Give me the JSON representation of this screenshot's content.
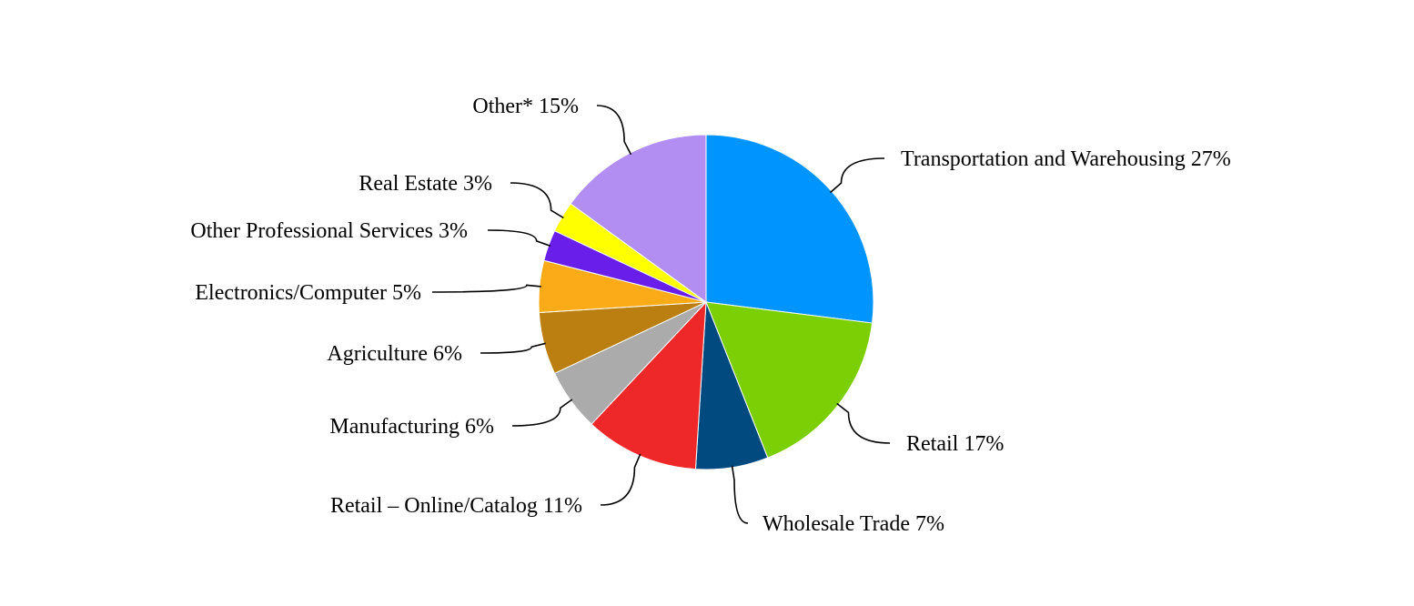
{
  "chart_data": {
    "type": "pie",
    "title": "",
    "start_angle_deg": 0,
    "direction": "clockwise",
    "slices": [
      {
        "label": "Transportation and Warehousing",
        "value": 27,
        "display": "Transportation and Warehousing 27%",
        "color": "#0094FF"
      },
      {
        "label": "Retail",
        "value": 17,
        "display": "Retail 17%",
        "color": "#7DCF05"
      },
      {
        "label": "Wholesale Trade",
        "value": 7,
        "display": "Wholesale Trade 7%",
        "color": "#004A7F"
      },
      {
        "label": "Retail – Online/Catalog",
        "value": 11,
        "display": "Retail – Online/Catalog 11%",
        "color": "#EE2828"
      },
      {
        "label": "Manufacturing",
        "value": 6,
        "display": "Manufacturing 6%",
        "color": "#ABABAB"
      },
      {
        "label": "Agriculture",
        "value": 6,
        "display": "Agriculture 6%",
        "color": "#BA7F10"
      },
      {
        "label": "Electronics/Computer",
        "value": 5,
        "display": "Electronics/Computer 5%",
        "color": "#FBAA18"
      },
      {
        "label": "Other Professional Services",
        "value": 3,
        "display": "Other Professional Services 3%",
        "color": "#6A1EEA"
      },
      {
        "label": "Real Estate",
        "value": 3,
        "display": "Real Estate 3%",
        "color": "#FFFF00"
      },
      {
        "label": "Other*",
        "value": 15,
        "display": "Other* 15%",
        "color": "#B28EF2"
      }
    ]
  }
}
